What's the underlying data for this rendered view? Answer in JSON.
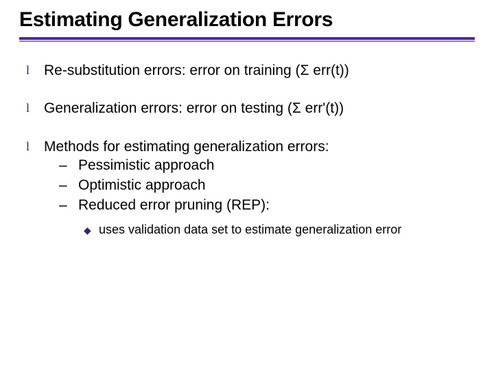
{
  "colors": {
    "title": "#000000",
    "text": "#000000",
    "hr_primary": "#4a2e8a",
    "hr_secondary": "#9a6fd8",
    "bullet": "#3a2468",
    "background": "#ffffff"
  },
  "typography": {
    "title_fontsize": 30,
    "l1_fontsize": 21,
    "l2_fontsize": 21,
    "l3_fontsize": 18,
    "font_family": "Arial"
  },
  "title": "Estimating Generalization Errors",
  "bullets": [
    {
      "text": "Re-substitution errors: error on training (Σ err(t))"
    },
    {
      "text": "Generalization errors: error on testing (Σ err'(t))"
    },
    {
      "text": "Methods for estimating generalization errors:",
      "children": [
        {
          "text": "Pessimistic approach"
        },
        {
          "text": "Optimistic approach"
        },
        {
          "text": "Reduced error pruning (REP):",
          "children": [
            {
              "text": "uses validation data set to estimate generalization error"
            }
          ]
        }
      ]
    }
  ],
  "glyphs": {
    "l1": "l",
    "l2": "–",
    "l3": "◆"
  }
}
